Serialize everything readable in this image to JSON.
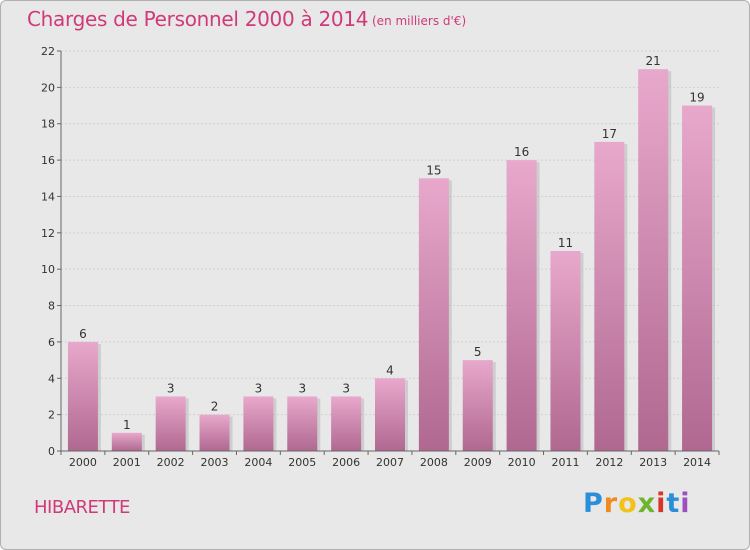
{
  "header": {
    "title": "Charges de Personnel 2000 à 2014",
    "subtitle": "(en milliers d'€)"
  },
  "footer": {
    "commune": "HIBARETTE",
    "logo": {
      "letters": [
        "P",
        "r",
        "o",
        "x",
        "i",
        "t",
        "i"
      ],
      "colors": [
        "#2a8fd8",
        "#f08a1e",
        "#f2c21a",
        "#6cb52d",
        "#d8352a",
        "#2a8fd8",
        "#9b4fc0"
      ]
    }
  },
  "colors": {
    "bar_top": "#e8a8cc",
    "bar_bottom": "#b06890",
    "grid": "#d0d0d0",
    "axis": "#666666"
  },
  "chart_data": {
    "type": "bar",
    "title": "Charges de Personnel 2000 à 2014",
    "subtitle": "(en milliers d'€)",
    "xlabel": "",
    "ylabel": "",
    "categories": [
      "2000",
      "2001",
      "2002",
      "2003",
      "2004",
      "2005",
      "2006",
      "2007",
      "2008",
      "2009",
      "2010",
      "2011",
      "2012",
      "2013",
      "2014"
    ],
    "values": [
      6,
      1,
      3,
      2,
      3,
      3,
      3,
      4,
      15,
      5,
      16,
      11,
      17,
      21,
      19
    ],
    "ylim": [
      0,
      22
    ],
    "yticks": [
      0,
      2,
      4,
      6,
      8,
      10,
      12,
      14,
      16,
      18,
      20,
      22
    ],
    "grid": true,
    "data_labels": true
  }
}
